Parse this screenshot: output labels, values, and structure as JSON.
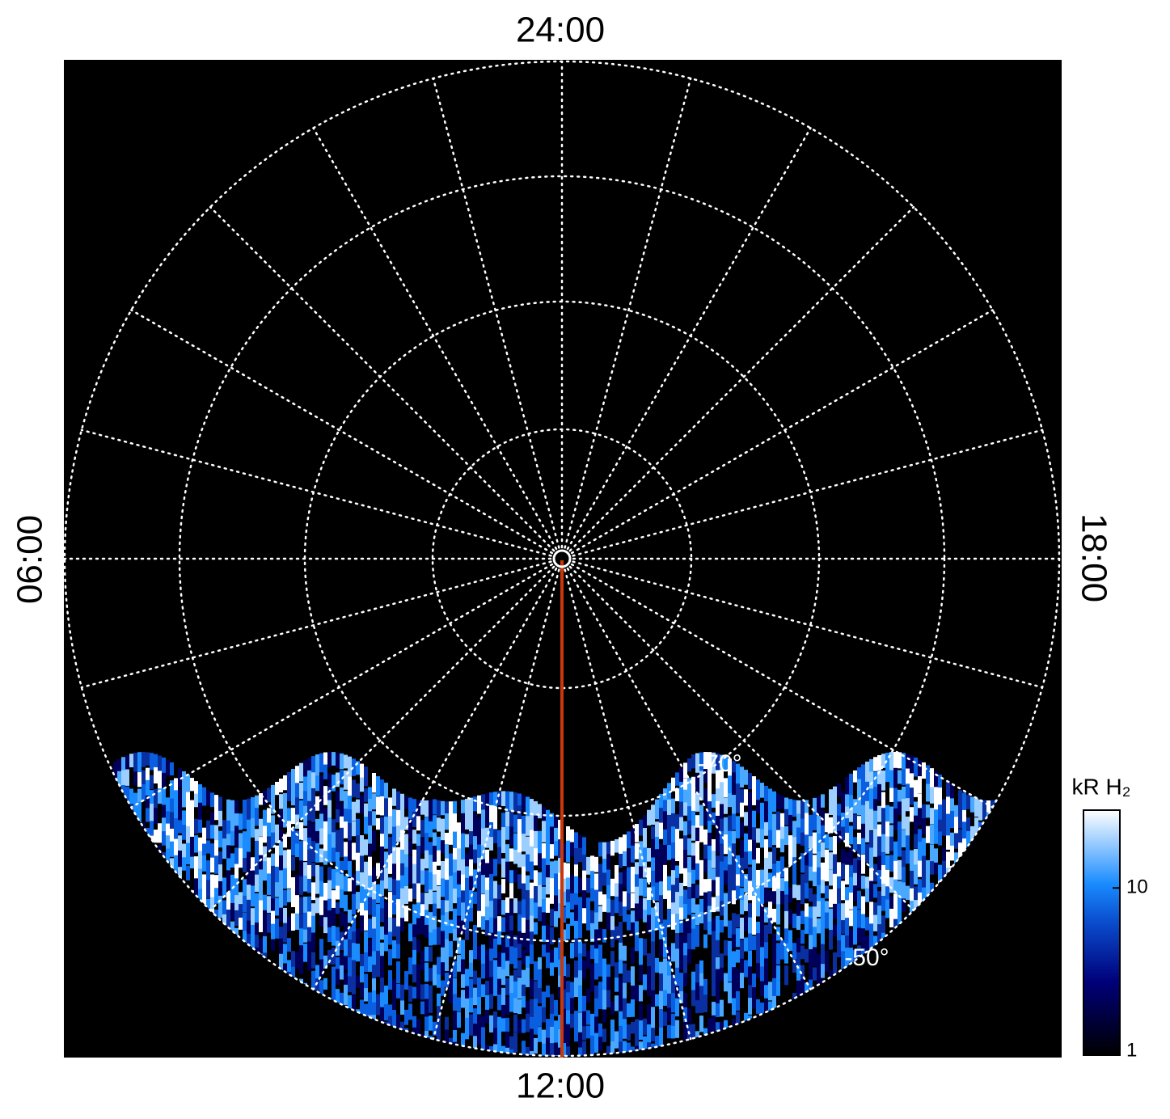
{
  "map": {
    "local_time_labels": {
      "top": "24:00",
      "bottom": "12:00",
      "left": "06:00",
      "right": "18:00"
    },
    "latitude_labels": [
      "-70°",
      "-50°"
    ],
    "colorbar": {
      "title": "kR H₂",
      "lim": [
        1,
        30
      ],
      "log": true,
      "ticks": [
        1,
        10
      ]
    }
  }
}
